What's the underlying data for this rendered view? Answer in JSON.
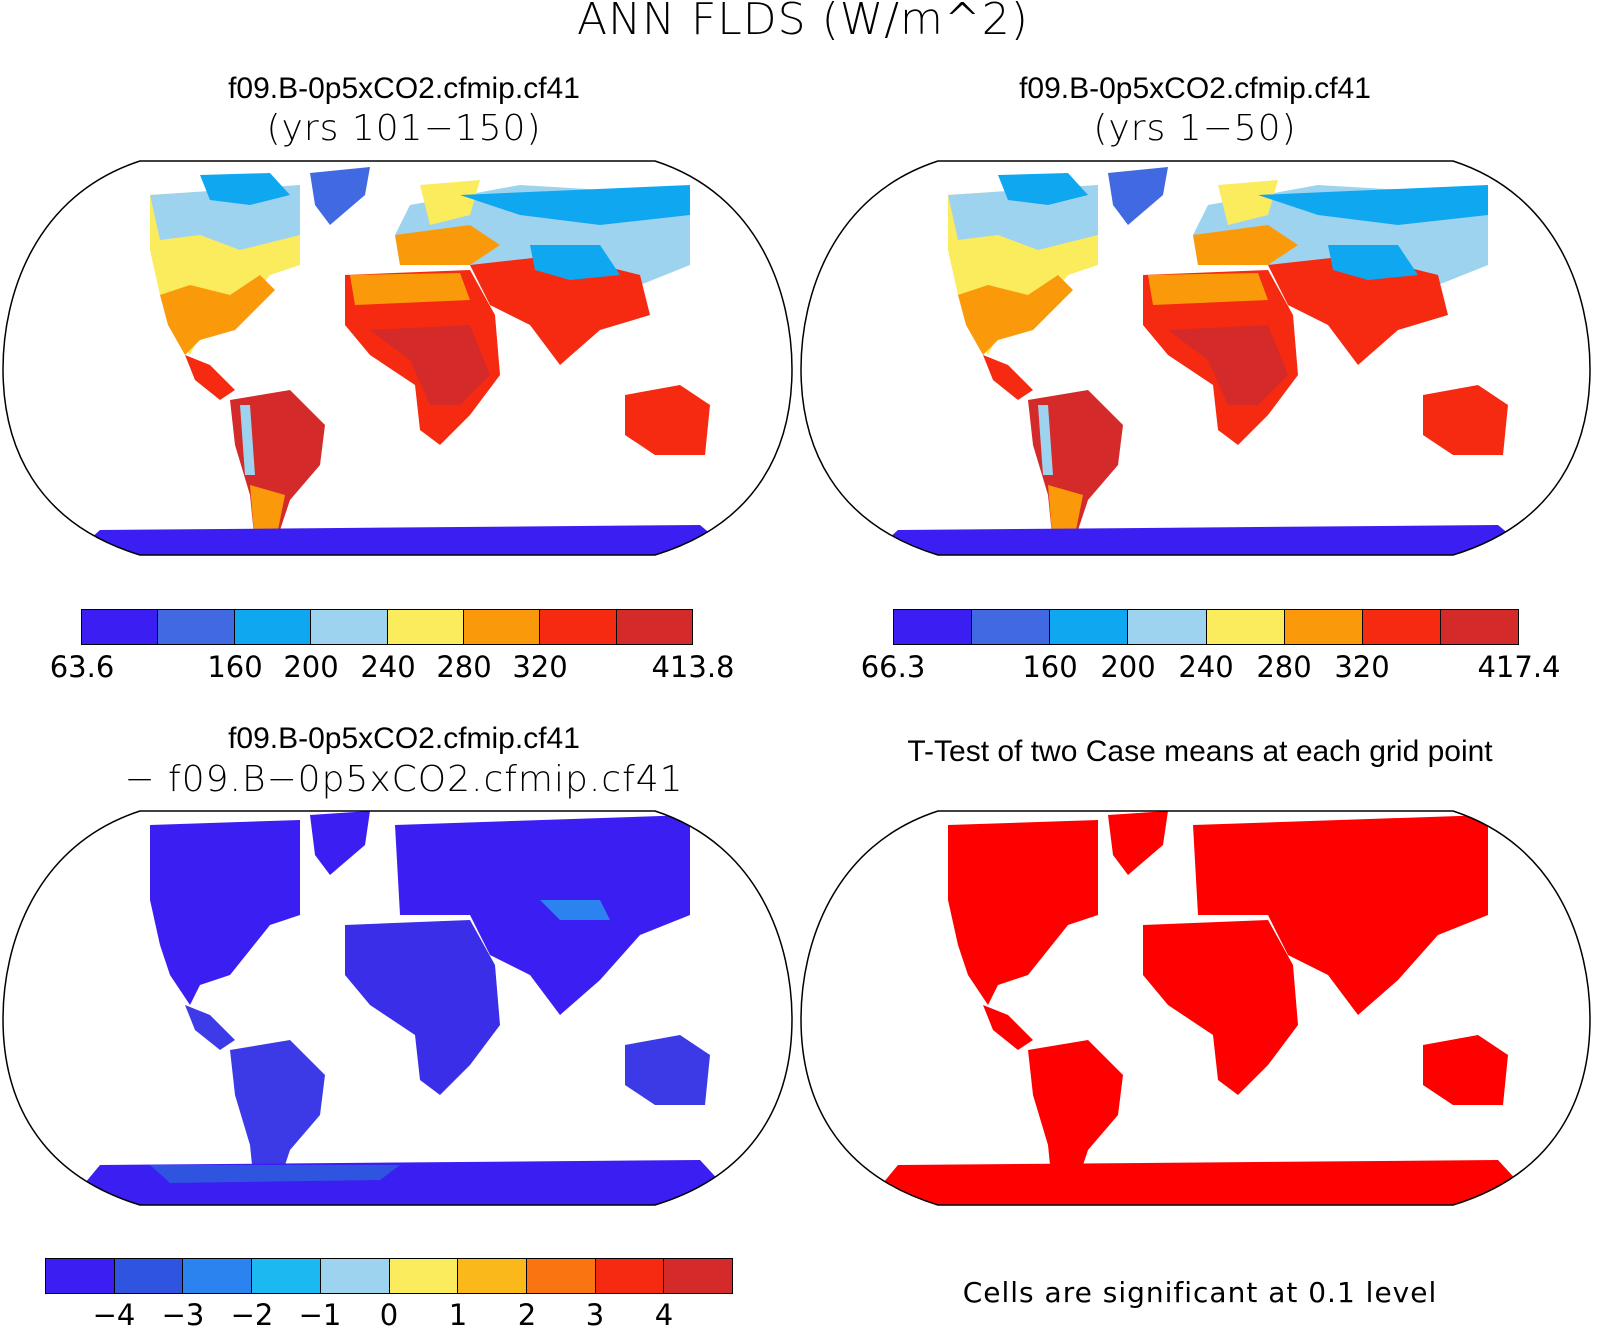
{
  "main_title": "ANN FLDS (W/m^2)",
  "panels": [
    {
      "title": "f09.B-0p5xCO2.cfmip.cf41",
      "subtitle": "(yrs 101−150)",
      "colorbar": {
        "colors": [
          "#3b1ef2",
          "#4169e1",
          "#0fa8f0",
          "#9dd3ef",
          "#fbec5d",
          "#fa9a0a",
          "#f52a10",
          "#d42a2a"
        ],
        "tick_labels": [
          "63.6",
          "160",
          "200",
          "240",
          "280",
          "320",
          "413.8"
        ]
      }
    },
    {
      "title": "f09.B-0p5xCO2.cfmip.cf41",
      "subtitle": "(yrs 1−50)",
      "colorbar": {
        "colors": [
          "#3b1ef2",
          "#4169e1",
          "#0fa8f0",
          "#9dd3ef",
          "#fbec5d",
          "#fa9a0a",
          "#f52a10",
          "#d42a2a"
        ],
        "tick_labels": [
          "66.3",
          "160",
          "200",
          "240",
          "280",
          "320",
          "417.4"
        ]
      }
    },
    {
      "title": "f09.B-0p5xCO2.cfmip.cf41",
      "subtitle": "− f09.B−0p5xCO2.cfmip.cf41",
      "colorbar": {
        "colors": [
          "#3b1ef2",
          "#2f55e0",
          "#2a83ee",
          "#1bb8f2",
          "#9dd3ef",
          "#fbec5d",
          "#fbb81a",
          "#fa7412",
          "#f52a10",
          "#d42a2a"
        ],
        "tick_labels": [
          "−4",
          "−3",
          "−2",
          "−1",
          "0",
          "1",
          "2",
          "3",
          "4"
        ]
      }
    },
    {
      "title": "T-Test of two Case means at each grid point",
      "note": "Cells are significant at 0.1 level",
      "land_color": "#ff0000"
    }
  ]
}
